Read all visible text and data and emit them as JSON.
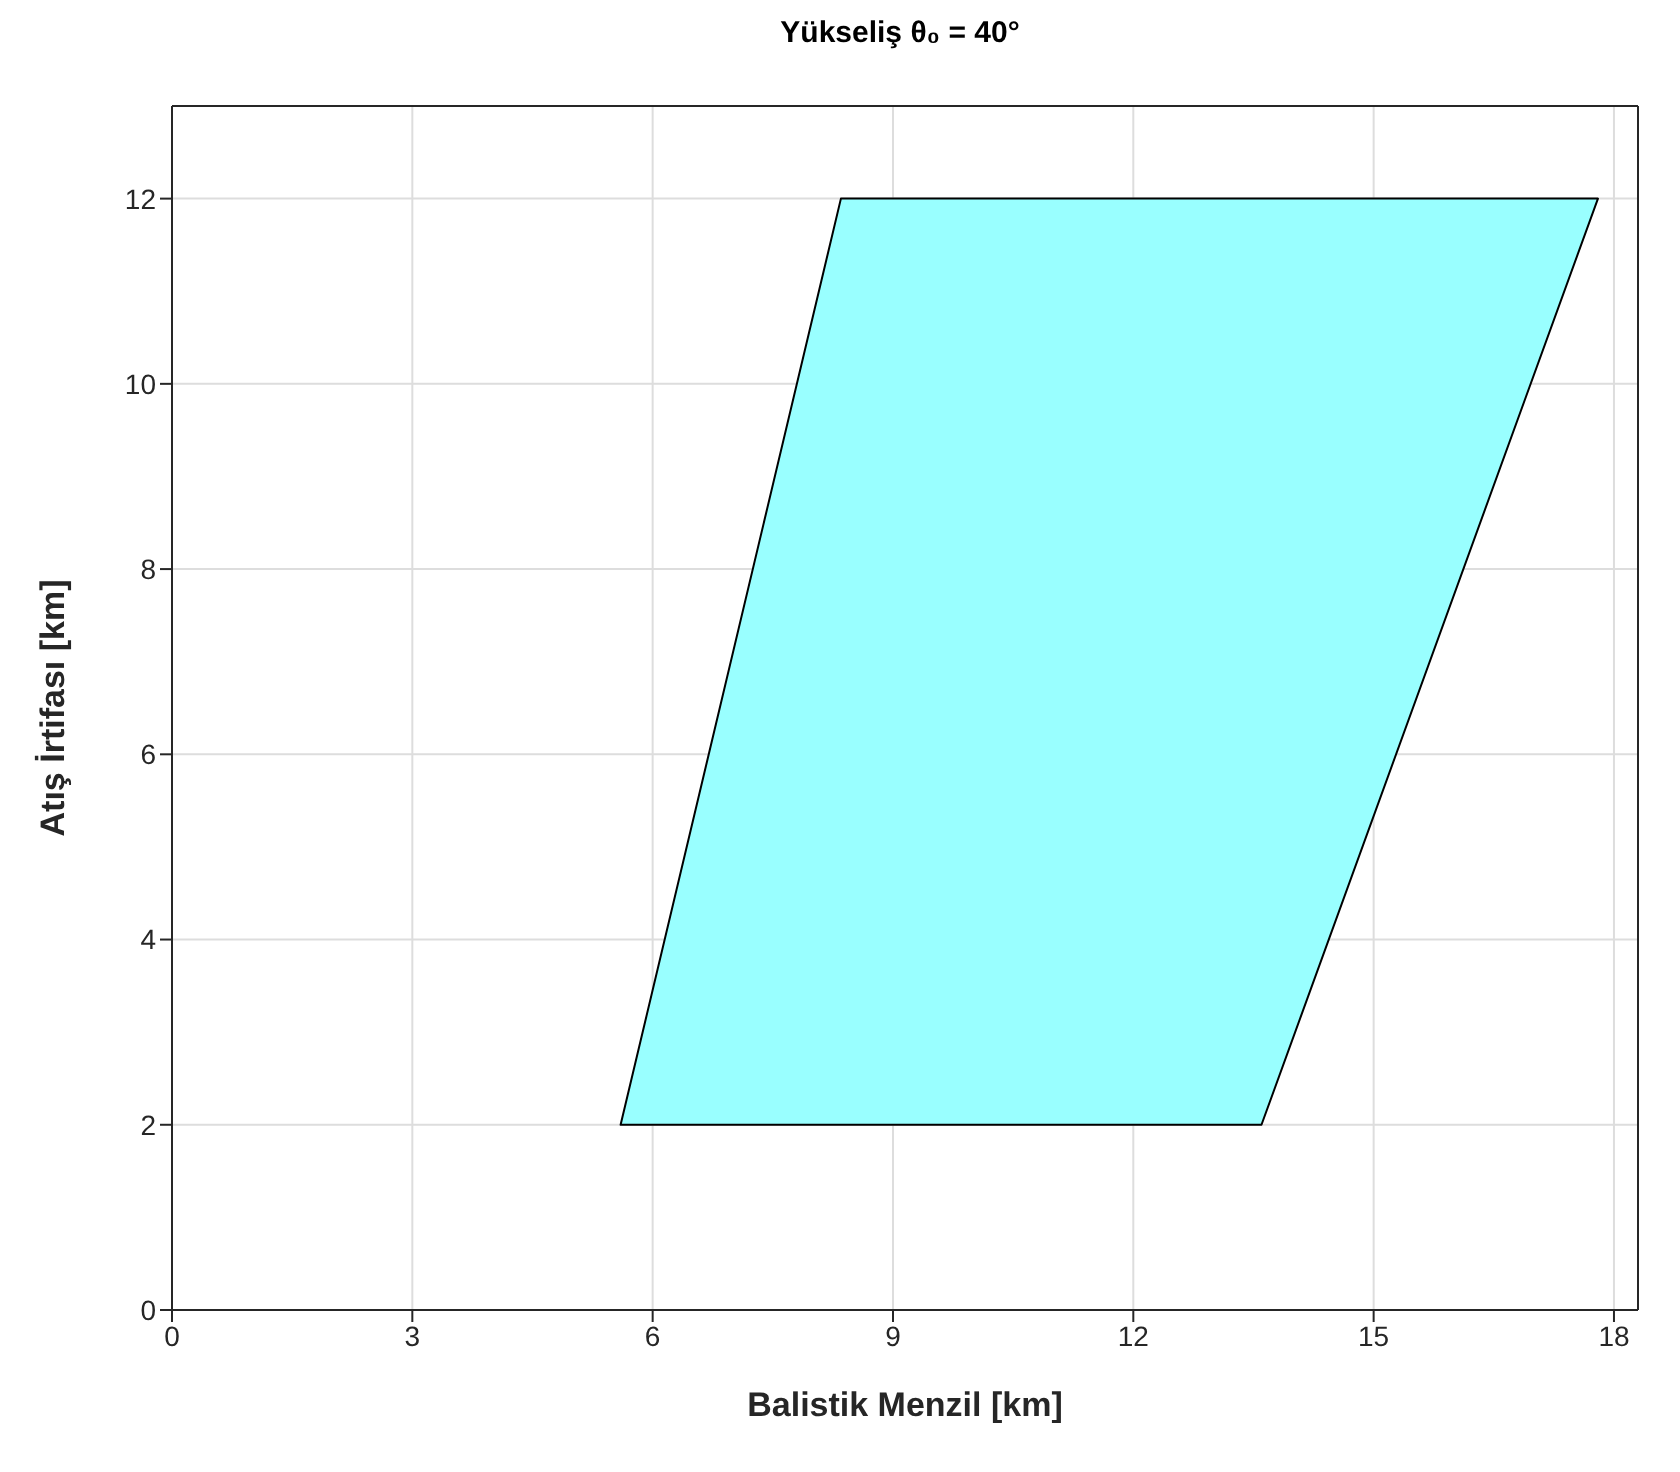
{
  "chart_data": {
    "type": "area",
    "title": "Yükseliş θ₀ = 40°",
    "xlabel": "Balistik Menzil [km]",
    "ylabel": "Atış İrtifası [km]",
    "series": [
      {
        "color": "#99ffff",
        "x": [
          5.6,
          13.6,
          17.8,
          8.35
        ],
        "values": [
          2,
          2,
          12,
          12
        ]
      }
    ],
    "xlim": [
      0,
      18.3
    ],
    "xticks": [
      0,
      3,
      6,
      9,
      12,
      15,
      18
    ],
    "ylim": [
      0,
      13
    ],
    "yticks": [
      0,
      2,
      4,
      6,
      8,
      10,
      12
    ],
    "grid": true
  }
}
